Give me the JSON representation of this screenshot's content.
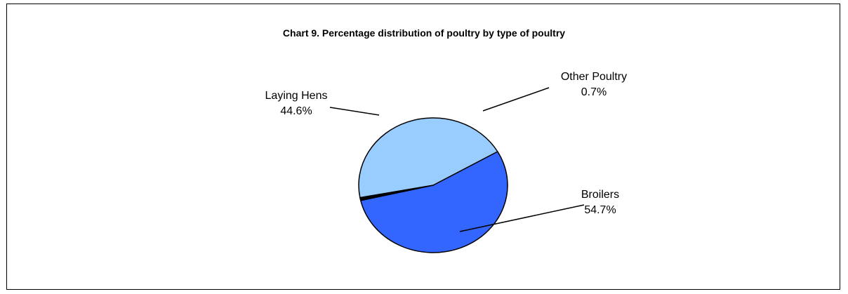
{
  "chart_data": {
    "type": "pie",
    "title": "Chart 9.  Percentage distribution of poultry by type of poultry",
    "slices": [
      {
        "label": "Broilers",
        "value": 54.7,
        "value_label": "54.7%",
        "color": "#3366FF"
      },
      {
        "label": "Other Poultry",
        "value": 0.7,
        "value_label": "0.7%",
        "color": "#000000"
      },
      {
        "label": "Laying Hens",
        "value": 44.6,
        "value_label": "44.6%",
        "color": "#99CCFF"
      }
    ],
    "legend": "none",
    "grid": false
  }
}
